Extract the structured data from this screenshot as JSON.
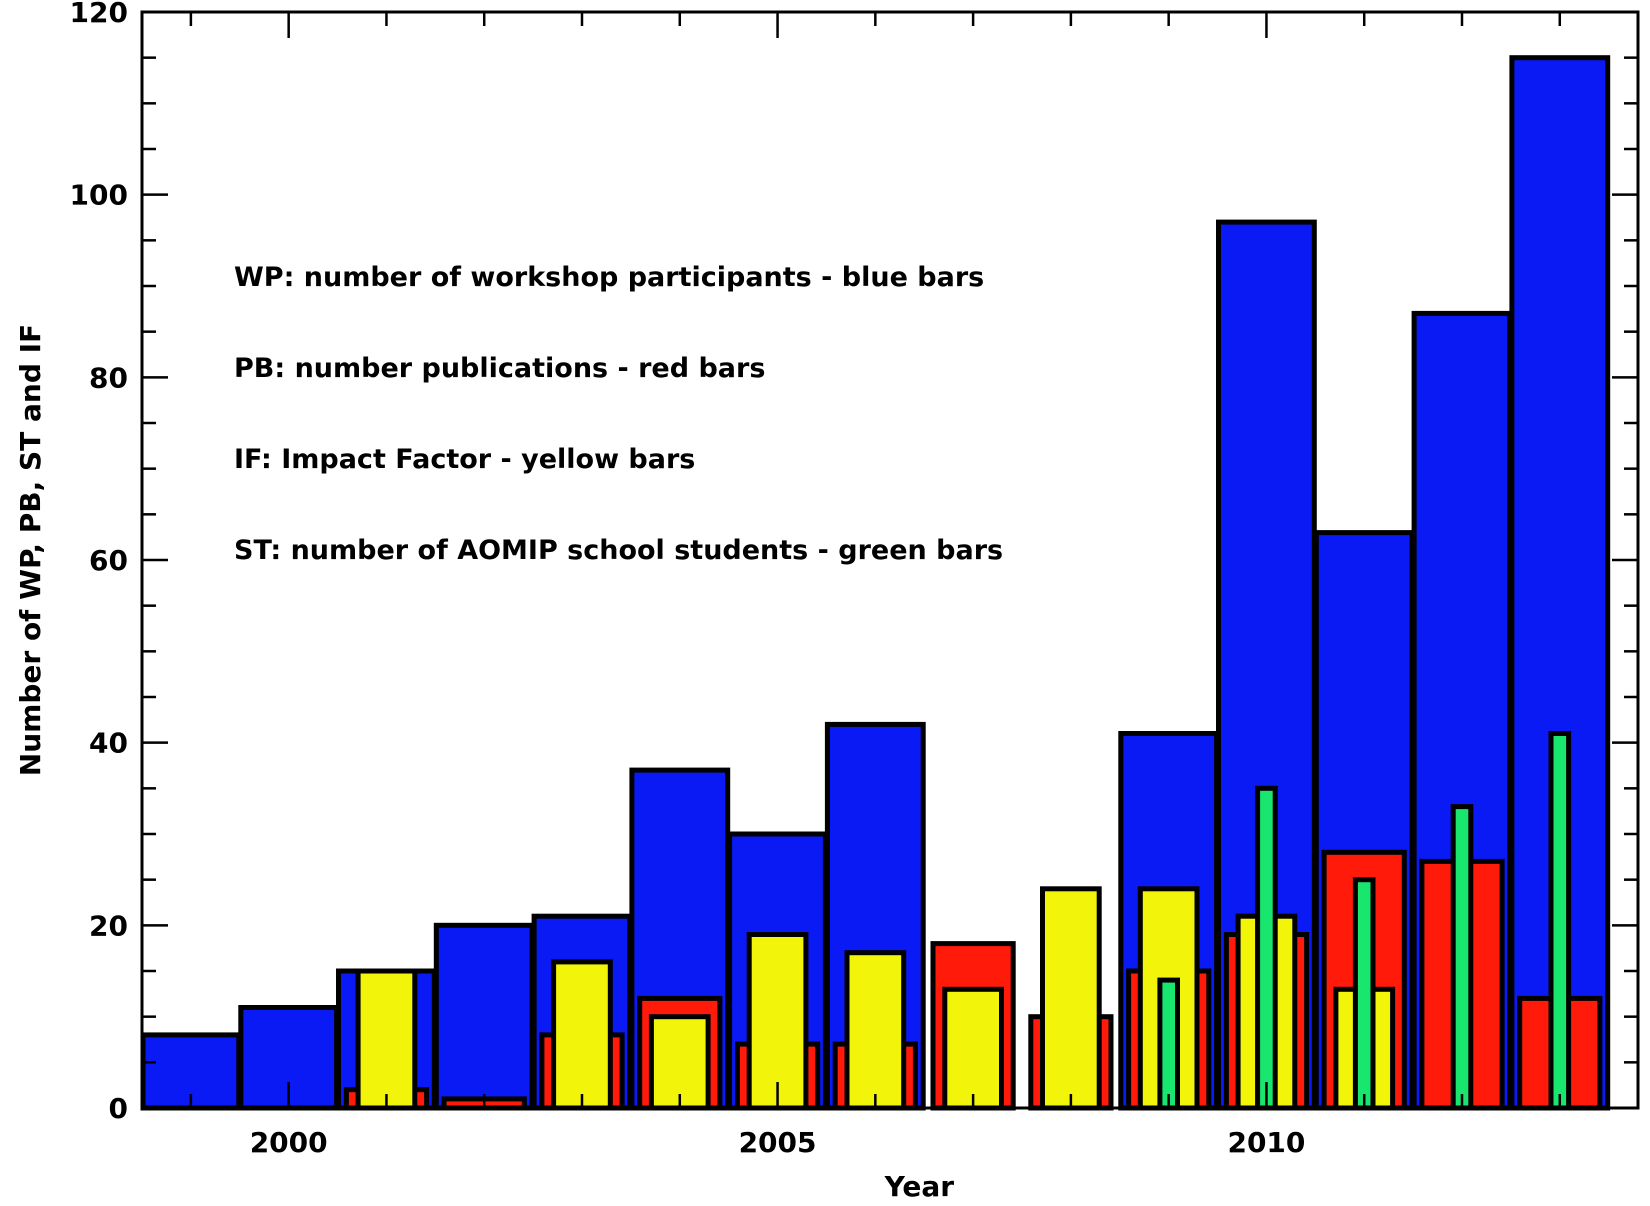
{
  "chart_data": {
    "type": "bar",
    "xlabel": "Year",
    "ylabel": "Number of WP, PB, ST and IF",
    "xlim": [
      1998.5,
      2013.8
    ],
    "ylim": [
      0,
      120
    ],
    "x_ticks": [
      2000,
      2005,
      2010
    ],
    "y_ticks": [
      0,
      20,
      40,
      60,
      80,
      100,
      120
    ],
    "legend_placement": "top-left",
    "legend": [
      "WP: number of workshop participants - blue bars",
      "PB: number publications - red bars",
      "IF: Impact Factor - yellow bars",
      "ST: number of AOMIP school students - green bars"
    ],
    "series": [
      {
        "key": "WP",
        "color": "#0a1af5",
        "x": [
          1999,
          2000,
          2001,
          2002,
          2003,
          2004,
          2005,
          2006,
          2009,
          2010,
          2011,
          2012,
          2013
        ],
        "values": [
          8,
          11,
          15,
          20,
          21,
          37,
          30,
          42,
          41,
          97,
          63,
          87,
          115
        ]
      },
      {
        "key": "PB",
        "color": "#ff1a0a",
        "x": [
          2001,
          2002,
          2003,
          2004,
          2005,
          2006,
          2007,
          2008,
          2009,
          2010,
          2011,
          2012,
          2013
        ],
        "values": [
          2,
          1,
          8,
          12,
          7,
          7,
          18,
          10,
          15,
          19,
          28,
          27,
          12
        ]
      },
      {
        "key": "IF",
        "color": "#f2f50a",
        "x": [
          2001,
          2003,
          2004,
          2005,
          2006,
          2007,
          2008,
          2009,
          2010,
          2011
        ],
        "values": [
          15,
          16,
          10,
          19,
          17,
          13,
          24,
          24,
          21,
          13
        ]
      },
      {
        "key": "ST",
        "color": "#19e66e",
        "x": [
          2009,
          2010,
          2011,
          2012,
          2013
        ],
        "values": [
          14,
          35,
          25,
          33,
          41
        ]
      }
    ]
  }
}
